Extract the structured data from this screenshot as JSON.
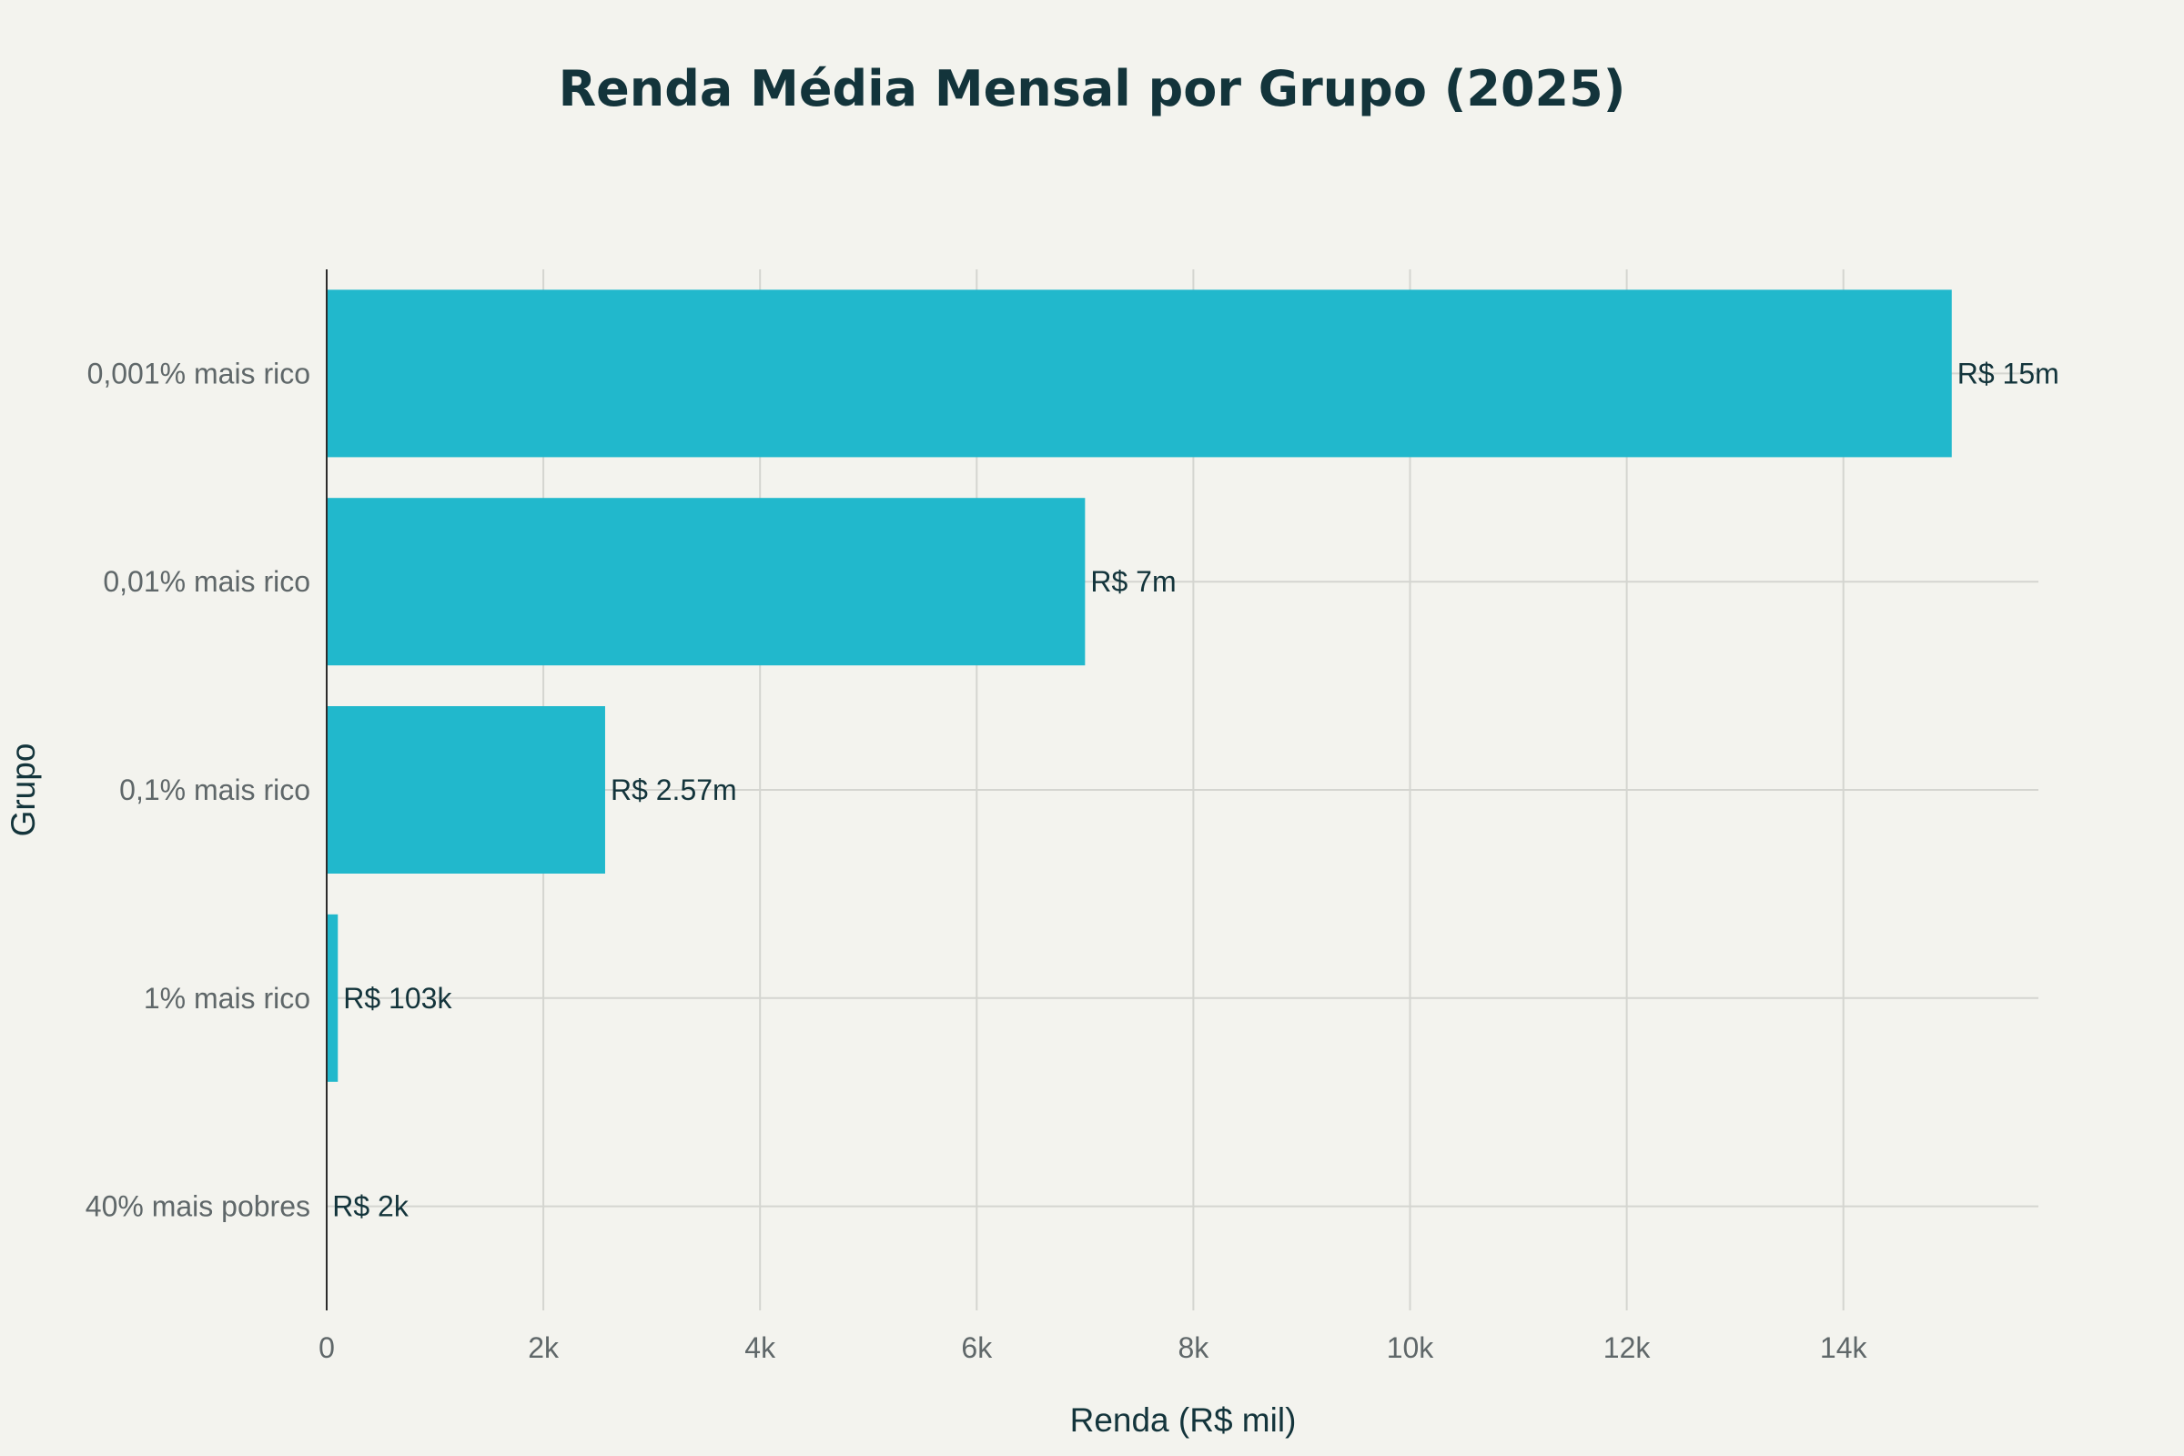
{
  "chart_data": {
    "type": "bar",
    "orientation": "horizontal",
    "title": "Renda Média Mensal por Grupo (2025)",
    "xlabel": "Renda (R$ mil)",
    "ylabel": "Grupo",
    "categories": [
      "0,001% mais rico",
      "0,01% mais rico",
      "0,1% mais rico",
      "1% mais rico",
      "40% mais pobres"
    ],
    "values": [
      15000,
      7000,
      2570,
      103,
      2
    ],
    "data_labels": [
      "R$ 15m",
      "R$ 7m",
      "R$ 2.57m",
      "R$ 103k",
      "R$ 2k"
    ],
    "xlim": [
      0,
      15800
    ],
    "xticks": [
      0,
      2000,
      4000,
      6000,
      8000,
      10000,
      12000,
      14000
    ],
    "xtick_labels": [
      "0",
      "2k",
      "4k",
      "6k",
      "8k",
      "10k",
      "12k",
      "14k"
    ],
    "bar_color": "#21b8cc",
    "grid": true,
    "legend": "none"
  }
}
